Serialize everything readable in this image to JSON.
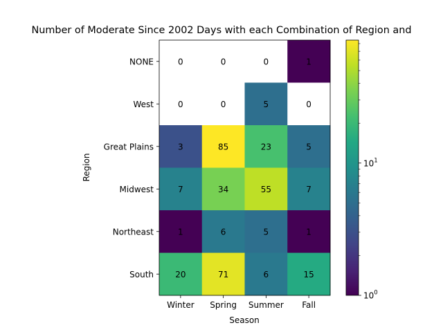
{
  "chart_data": {
    "type": "heatmap",
    "title": "Number of Moderate Since 2002 Days with each Combination of Region and",
    "xlabel": "Season",
    "ylabel": "Region",
    "x_categories": [
      "Winter",
      "Spring",
      "Summer",
      "Fall"
    ],
    "y_categories": [
      "NONE",
      "West",
      "Great Plains",
      "Midwest",
      "Northeast",
      "South"
    ],
    "values": [
      [
        0,
        0,
        0,
        1
      ],
      [
        0,
        0,
        5,
        0
      ],
      [
        3,
        85,
        23,
        5
      ],
      [
        7,
        34,
        55,
        7
      ],
      [
        1,
        6,
        5,
        1
      ],
      [
        20,
        71,
        6,
        15
      ]
    ],
    "color_scale": "log",
    "colormap": "viridis",
    "zero_color": "#ffffff",
    "color_range": [
      1,
      85
    ],
    "colorbar_ticks": [
      {
        "value": 1,
        "base": "10",
        "exp": "0"
      },
      {
        "value": 10,
        "base": "10",
        "exp": "1"
      }
    ],
    "grid": false
  }
}
